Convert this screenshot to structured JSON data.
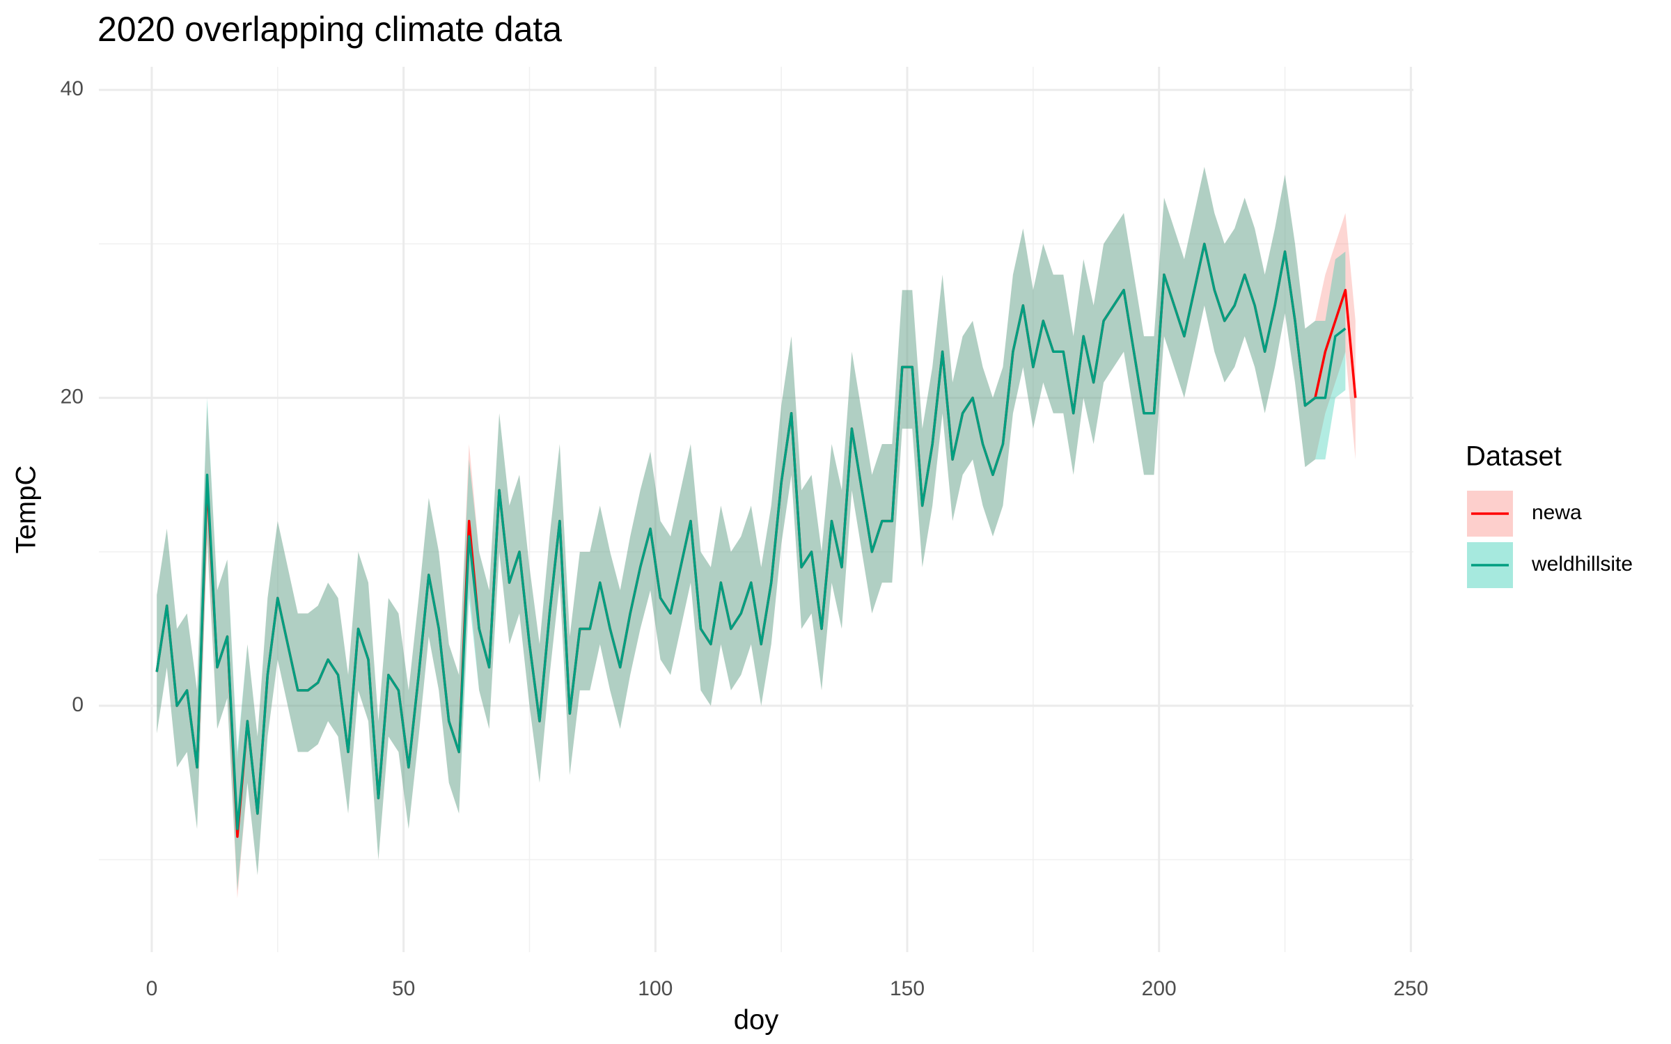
{
  "chart_data": {
    "type": "line",
    "title": "2020 overlapping climate data",
    "xlabel": "doy",
    "ylabel": "TempC",
    "legend_title": "Dataset",
    "legend": "right",
    "x": [
      1,
      3,
      5,
      7,
      9,
      11,
      13,
      15,
      17,
      19,
      21,
      23,
      25,
      27,
      29,
      31,
      33,
      35,
      37,
      39,
      41,
      43,
      45,
      47,
      49,
      51,
      53,
      55,
      57,
      59,
      61,
      63,
      65,
      67,
      69,
      71,
      73,
      75,
      77,
      79,
      81,
      83,
      85,
      87,
      89,
      91,
      93,
      95,
      97,
      99,
      101,
      103,
      105,
      107,
      109,
      111,
      113,
      115,
      117,
      119,
      121,
      123,
      125,
      127,
      129,
      131,
      133,
      135,
      137,
      139,
      141,
      143,
      145,
      147,
      149,
      151,
      153,
      155,
      157,
      159,
      161,
      163,
      165,
      167,
      169,
      171,
      173,
      175,
      177,
      179,
      181,
      183,
      185,
      187,
      189,
      191,
      193,
      195,
      197,
      199,
      201,
      203,
      205,
      207,
      209,
      211,
      213,
      215,
      217,
      219,
      221,
      223,
      225,
      227,
      229,
      231,
      233,
      235,
      237,
      239
    ],
    "series": [
      {
        "name": "newa",
        "color": "#ff0000",
        "ribbon_color": "#f8766d",
        "values": [
          2.2,
          6.5,
          0,
          1,
          -4,
          14.5,
          2.5,
          4.5,
          -8.5,
          -1,
          -7,
          2,
          7,
          4,
          1,
          1,
          1.5,
          3,
          2,
          -3,
          5,
          3,
          -6,
          2,
          1,
          -4,
          2,
          8.5,
          5,
          -1,
          -3,
          12,
          5,
          2.5,
          14,
          8,
          10,
          4,
          -1,
          6,
          12,
          -0.5,
          5,
          5,
          8,
          5,
          2.5,
          6,
          9,
          11.5,
          7,
          6,
          9,
          12,
          5,
          4,
          8,
          5,
          6,
          8,
          4,
          8,
          14.5,
          19,
          9,
          10,
          5,
          12,
          9,
          18,
          14,
          10,
          12,
          12,
          22,
          22,
          13,
          17,
          23,
          16,
          19,
          20,
          17,
          15,
          17,
          23,
          26,
          22,
          25,
          23,
          23,
          19,
          24,
          21,
          25,
          26,
          27,
          23,
          19,
          19,
          28,
          26,
          24,
          27,
          30,
          27,
          25,
          26,
          28,
          26,
          23,
          26,
          29.5,
          25,
          19.5,
          20,
          23,
          25,
          27,
          20
        ],
        "low": [
          -1.8,
          2.5,
          -4,
          -3,
          -8,
          10.5,
          -1.5,
          0.5,
          -12.5,
          -5,
          -11,
          -2,
          3,
          0,
          -3,
          -3,
          -2.5,
          -1,
          -2,
          -7,
          1,
          -1,
          -10,
          -2,
          -3,
          -8,
          -2,
          4.5,
          1,
          -5,
          -7,
          8,
          1,
          -1.5,
          10,
          4,
          6,
          0,
          -5,
          2,
          8,
          -4.5,
          1,
          1,
          4,
          1,
          -1.5,
          2,
          5,
          7.5,
          3,
          2,
          5,
          8,
          1,
          0,
          4,
          1,
          2,
          4,
          0,
          4,
          10.5,
          15,
          5,
          6,
          1,
          8,
          5,
          14,
          10,
          6,
          8,
          8,
          18,
          18,
          9,
          13,
          19,
          12,
          15,
          16,
          13,
          11,
          13,
          19,
          22,
          18,
          21,
          19,
          19,
          15,
          20,
          17,
          21,
          22,
          23,
          19,
          15,
          15,
          24,
          22,
          20,
          23,
          26,
          23,
          21,
          22,
          24,
          22,
          19,
          22,
          25.5,
          21,
          15.5,
          16,
          19,
          21,
          23,
          16
        ],
        "high": [
          7.2,
          11.5,
          5,
          6,
          1,
          19.5,
          7.5,
          9.5,
          -3.5,
          4,
          -2,
          7,
          12,
          9,
          6,
          6,
          6.5,
          8,
          7,
          2,
          10,
          8,
          -1,
          7,
          6,
          1,
          7,
          13.5,
          10,
          4,
          2,
          17,
          10,
          7.5,
          19,
          13,
          15,
          9,
          4,
          11,
          17,
          4.5,
          10,
          10,
          13,
          10,
          7.5,
          11,
          14,
          16.5,
          12,
          11,
          14,
          17,
          10,
          9,
          13,
          10,
          11,
          13,
          9,
          13,
          19.5,
          24,
          14,
          15,
          10,
          17,
          14,
          23,
          19,
          15,
          17,
          17,
          27,
          27,
          18,
          22,
          28,
          21,
          24,
          25,
          22,
          20,
          22,
          28,
          31,
          27,
          30,
          28,
          28,
          24,
          29,
          26,
          30,
          31,
          32,
          28,
          24,
          24,
          33,
          31,
          29,
          32,
          35,
          32,
          30,
          31,
          33,
          31,
          28,
          31,
          34.5,
          30,
          24.5,
          25,
          28,
          30,
          32,
          25
        ]
      },
      {
        "name": "weldhillsite",
        "color": "#009e80",
        "ribbon_color": "#00bfa0",
        "values": [
          2.2,
          6.5,
          0,
          1,
          -4,
          15,
          2.5,
          4.5,
          -8,
          -1,
          -7,
          2,
          7,
          4,
          1,
          1,
          1.5,
          3,
          2,
          -3,
          5,
          3,
          -6,
          2,
          1,
          -4,
          2,
          8.5,
          5,
          -1,
          -3,
          11,
          5,
          2.5,
          14,
          8,
          10,
          4,
          -1,
          6,
          12,
          -0.5,
          5,
          5,
          8,
          5,
          2.5,
          6,
          9,
          11.5,
          7,
          6,
          9,
          12,
          5,
          4,
          8,
          5,
          6,
          8,
          4,
          8,
          14.5,
          19,
          9,
          10,
          5,
          12,
          9,
          18,
          14,
          10,
          12,
          12,
          22,
          22,
          13,
          17,
          23,
          16,
          19,
          20,
          17,
          15,
          17,
          23,
          26,
          22,
          25,
          23,
          23,
          19,
          24,
          21,
          25,
          26,
          27,
          23,
          19,
          19,
          28,
          26,
          24,
          27,
          30,
          27,
          25,
          26,
          28,
          26,
          23,
          26,
          29.5,
          25,
          19.5,
          20,
          20,
          24,
          24.5,
          null
        ],
        "low": [
          -1.8,
          2.5,
          -4,
          -3,
          -8,
          11,
          -1.5,
          0.5,
          -12,
          -5,
          -11,
          -2,
          3,
          0,
          -3,
          -3,
          -2.5,
          -1,
          -2,
          -7,
          1,
          -1,
          -10,
          -2,
          -3,
          -8,
          -2,
          4.5,
          1,
          -5,
          -7,
          7,
          1,
          -1.5,
          10,
          4,
          6,
          0,
          -5,
          2,
          8,
          -4.5,
          1,
          1,
          4,
          1,
          -1.5,
          2,
          5,
          7.5,
          3,
          2,
          5,
          8,
          1,
          0,
          4,
          1,
          2,
          4,
          0,
          4,
          10.5,
          15,
          5,
          6,
          1,
          8,
          5,
          14,
          10,
          6,
          8,
          8,
          18,
          18,
          9,
          13,
          19,
          12,
          15,
          16,
          13,
          11,
          13,
          19,
          22,
          18,
          21,
          19,
          19,
          15,
          20,
          17,
          21,
          22,
          23,
          19,
          15,
          15,
          24,
          22,
          20,
          23,
          26,
          23,
          21,
          22,
          24,
          22,
          19,
          22,
          25.5,
          21,
          15.5,
          16,
          16,
          20,
          20.5,
          null
        ],
        "high": [
          7.2,
          11.5,
          5,
          6,
          1,
          20,
          7.5,
          9.5,
          -3,
          4,
          -2,
          7,
          12,
          9,
          6,
          6,
          6.5,
          8,
          7,
          2,
          10,
          8,
          -1,
          7,
          6,
          1,
          7,
          13.5,
          10,
          4,
          2,
          16,
          10,
          7.5,
          19,
          13,
          15,
          9,
          4,
          11,
          17,
          4.5,
          10,
          10,
          13,
          10,
          7.5,
          11,
          14,
          16.5,
          12,
          11,
          14,
          17,
          10,
          9,
          13,
          10,
          11,
          13,
          9,
          13,
          19.5,
          24,
          14,
          15,
          10,
          17,
          14,
          23,
          19,
          15,
          17,
          17,
          27,
          27,
          18,
          22,
          28,
          21,
          24,
          25,
          22,
          20,
          22,
          28,
          31,
          27,
          30,
          28,
          28,
          24,
          29,
          26,
          30,
          31,
          32,
          28,
          24,
          24,
          33,
          31,
          29,
          32,
          35,
          32,
          30,
          31,
          33,
          31,
          28,
          31,
          34.5,
          30,
          24.5,
          25,
          25,
          29,
          29.5,
          null
        ]
      }
    ],
    "xlim": [
      -10.5,
      250.5
    ],
    "xticks": [
      0,
      50,
      100,
      150,
      200,
      250
    ],
    "minor_xticks": [
      25,
      75,
      125,
      175,
      225
    ],
    "ylim": [
      -16,
      41.5
    ],
    "yticks": [
      0,
      20,
      40
    ],
    "minor_yticks": [
      -10,
      10,
      30
    ],
    "grid": true
  }
}
